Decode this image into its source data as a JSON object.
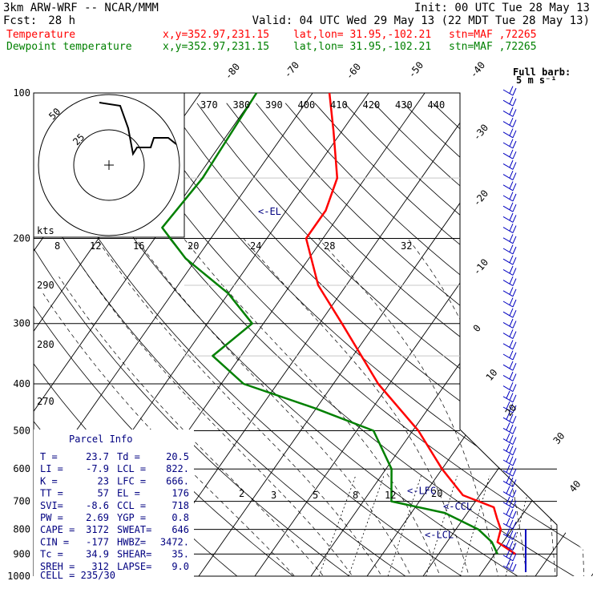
{
  "header": {
    "model": "3km ARW-WRF -- NCAR/MMM",
    "init": "Init: 00 UTC Tue 28 May 13",
    "fcst_label": "Fcst:",
    "fcst_value": "28 h",
    "valid": "Valid: 04 UTC Wed 29 May 13 (22 MDT Tue 28 May 13)",
    "temp_label": "Temperature",
    "dew_label": "Dewpoint temperature",
    "xy": "x,y=352.97,231.15",
    "latlon": "lat,lon= 31.95,-102.21",
    "stn": "stn=MAF ,72265",
    "barb_key_title": "Full barb:",
    "barb_key_value": "5 m s⁻¹"
  },
  "colors": {
    "temperature": "#ff0000",
    "dewpoint": "#008000",
    "parcel": "#000000",
    "labels": "#000080",
    "barbs": "#0000c0"
  },
  "chart_data": {
    "type": "line",
    "xlabel": "",
    "ylabel": "",
    "pressure_levels": [
      "100",
      "200",
      "300",
      "400",
      "500",
      "600",
      "700",
      "800",
      "900",
      "1000"
    ],
    "pressure_range_hpa": [
      100,
      1000
    ],
    "isotherm_labels": [
      "-80",
      "-70",
      "-60",
      "-50",
      "-40",
      "-30",
      "-20",
      "-10",
      "0",
      "10",
      "20",
      "30",
      "40"
    ],
    "theta_labels_top": [
      "370",
      "380",
      "390",
      "400",
      "410",
      "420",
      "430",
      "440"
    ],
    "mixing_ratio_labels": [
      "2",
      "3",
      "5",
      "8",
      "12",
      "20"
    ],
    "hodo_speed_labels": [
      "8",
      "12",
      "16",
      "20",
      "24",
      "28",
      "32"
    ],
    "hodo_units": "kts",
    "hodo_ring_labels": [
      "50",
      "25"
    ],
    "theta_labels_left": [
      "290",
      "280",
      "270"
    ],
    "level_markers": [
      {
        "label": "<-EL",
        "p": 176
      },
      {
        "label": "<-LFC",
        "p": 666
      },
      {
        "label": "<-CCL",
        "p": 718
      },
      {
        "label": "<-LCL",
        "p": 822
      }
    ],
    "series": [
      {
        "name": "Temperature",
        "points": [
          [
            100,
            -67
          ],
          [
            120,
            -61.5
          ],
          [
            150,
            -55
          ],
          [
            175,
            -53
          ],
          [
            200,
            -53
          ],
          [
            250,
            -45
          ],
          [
            300,
            -36
          ],
          [
            400,
            -22
          ],
          [
            500,
            -9
          ],
          [
            600,
            0
          ],
          [
            680,
            7
          ],
          [
            720,
            14
          ],
          [
            760,
            16
          ],
          [
            800,
            18
          ],
          [
            850,
            19
          ],
          [
            900,
            23.7
          ]
        ]
      },
      {
        "name": "Dewpoint temperature",
        "points": [
          [
            100,
            -80
          ],
          [
            150,
            -79
          ],
          [
            190,
            -80
          ],
          [
            220,
            -72
          ],
          [
            260,
            -60
          ],
          [
            300,
            -52
          ],
          [
            350,
            -55
          ],
          [
            400,
            -46
          ],
          [
            450,
            -30
          ],
          [
            500,
            -17
          ],
          [
            600,
            -9
          ],
          [
            700,
            -5
          ],
          [
            740,
            6
          ],
          [
            800,
            14
          ],
          [
            850,
            18
          ],
          [
            900,
            20.5
          ]
        ]
      }
    ],
    "parcel_info": {
      "title": "Parcel Info",
      "rows": [
        [
          "T  =",
          "23.7",
          "Td =",
          "20.5"
        ],
        [
          "LI =",
          "-7.9",
          "LCL =",
          "822."
        ],
        [
          "K  =",
          "23",
          "LFC =",
          "666."
        ],
        [
          "TT =",
          "57",
          "EL  =",
          "176"
        ],
        [
          "SVI=",
          "-8.6",
          "CCL =",
          "718"
        ],
        [
          "PW =",
          "2.69",
          "YGP =",
          "0.8"
        ],
        [
          "CAPE =",
          "3172",
          "SWEAT=",
          "646"
        ],
        [
          "CIN  =",
          "-177",
          "HWBZ=",
          "3472."
        ],
        [
          "Tc  =",
          "34.9",
          "SHEAR=",
          "35."
        ],
        [
          "SREH =",
          "312",
          "LAPSE=",
          "9.0"
        ]
      ],
      "cell": "CELL = 235/30"
    }
  }
}
